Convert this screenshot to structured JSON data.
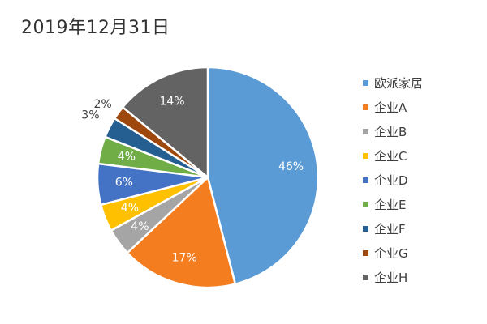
{
  "chart_data": {
    "type": "pie",
    "title": "2019年12月31日",
    "categories": [
      "欧派家居",
      "企业A",
      "企业B",
      "企业C",
      "企业D",
      "企业E",
      "企业F",
      "企业G",
      "企业H"
    ],
    "values": [
      46,
      17,
      4,
      4,
      6,
      4,
      3,
      2,
      14
    ],
    "labels": [
      "46%",
      "17%",
      "4%",
      "4%",
      "6%",
      "4%",
      "3%",
      "2%",
      "14%"
    ],
    "colors": [
      "#5B9BD5",
      "#F47D20",
      "#A5A5A5",
      "#FFC000",
      "#4472C4",
      "#70AD47",
      "#255E91",
      "#9E480E",
      "#636363"
    ],
    "legend_position": "right",
    "start_angle_deg": 0,
    "direction": "clockwise"
  }
}
